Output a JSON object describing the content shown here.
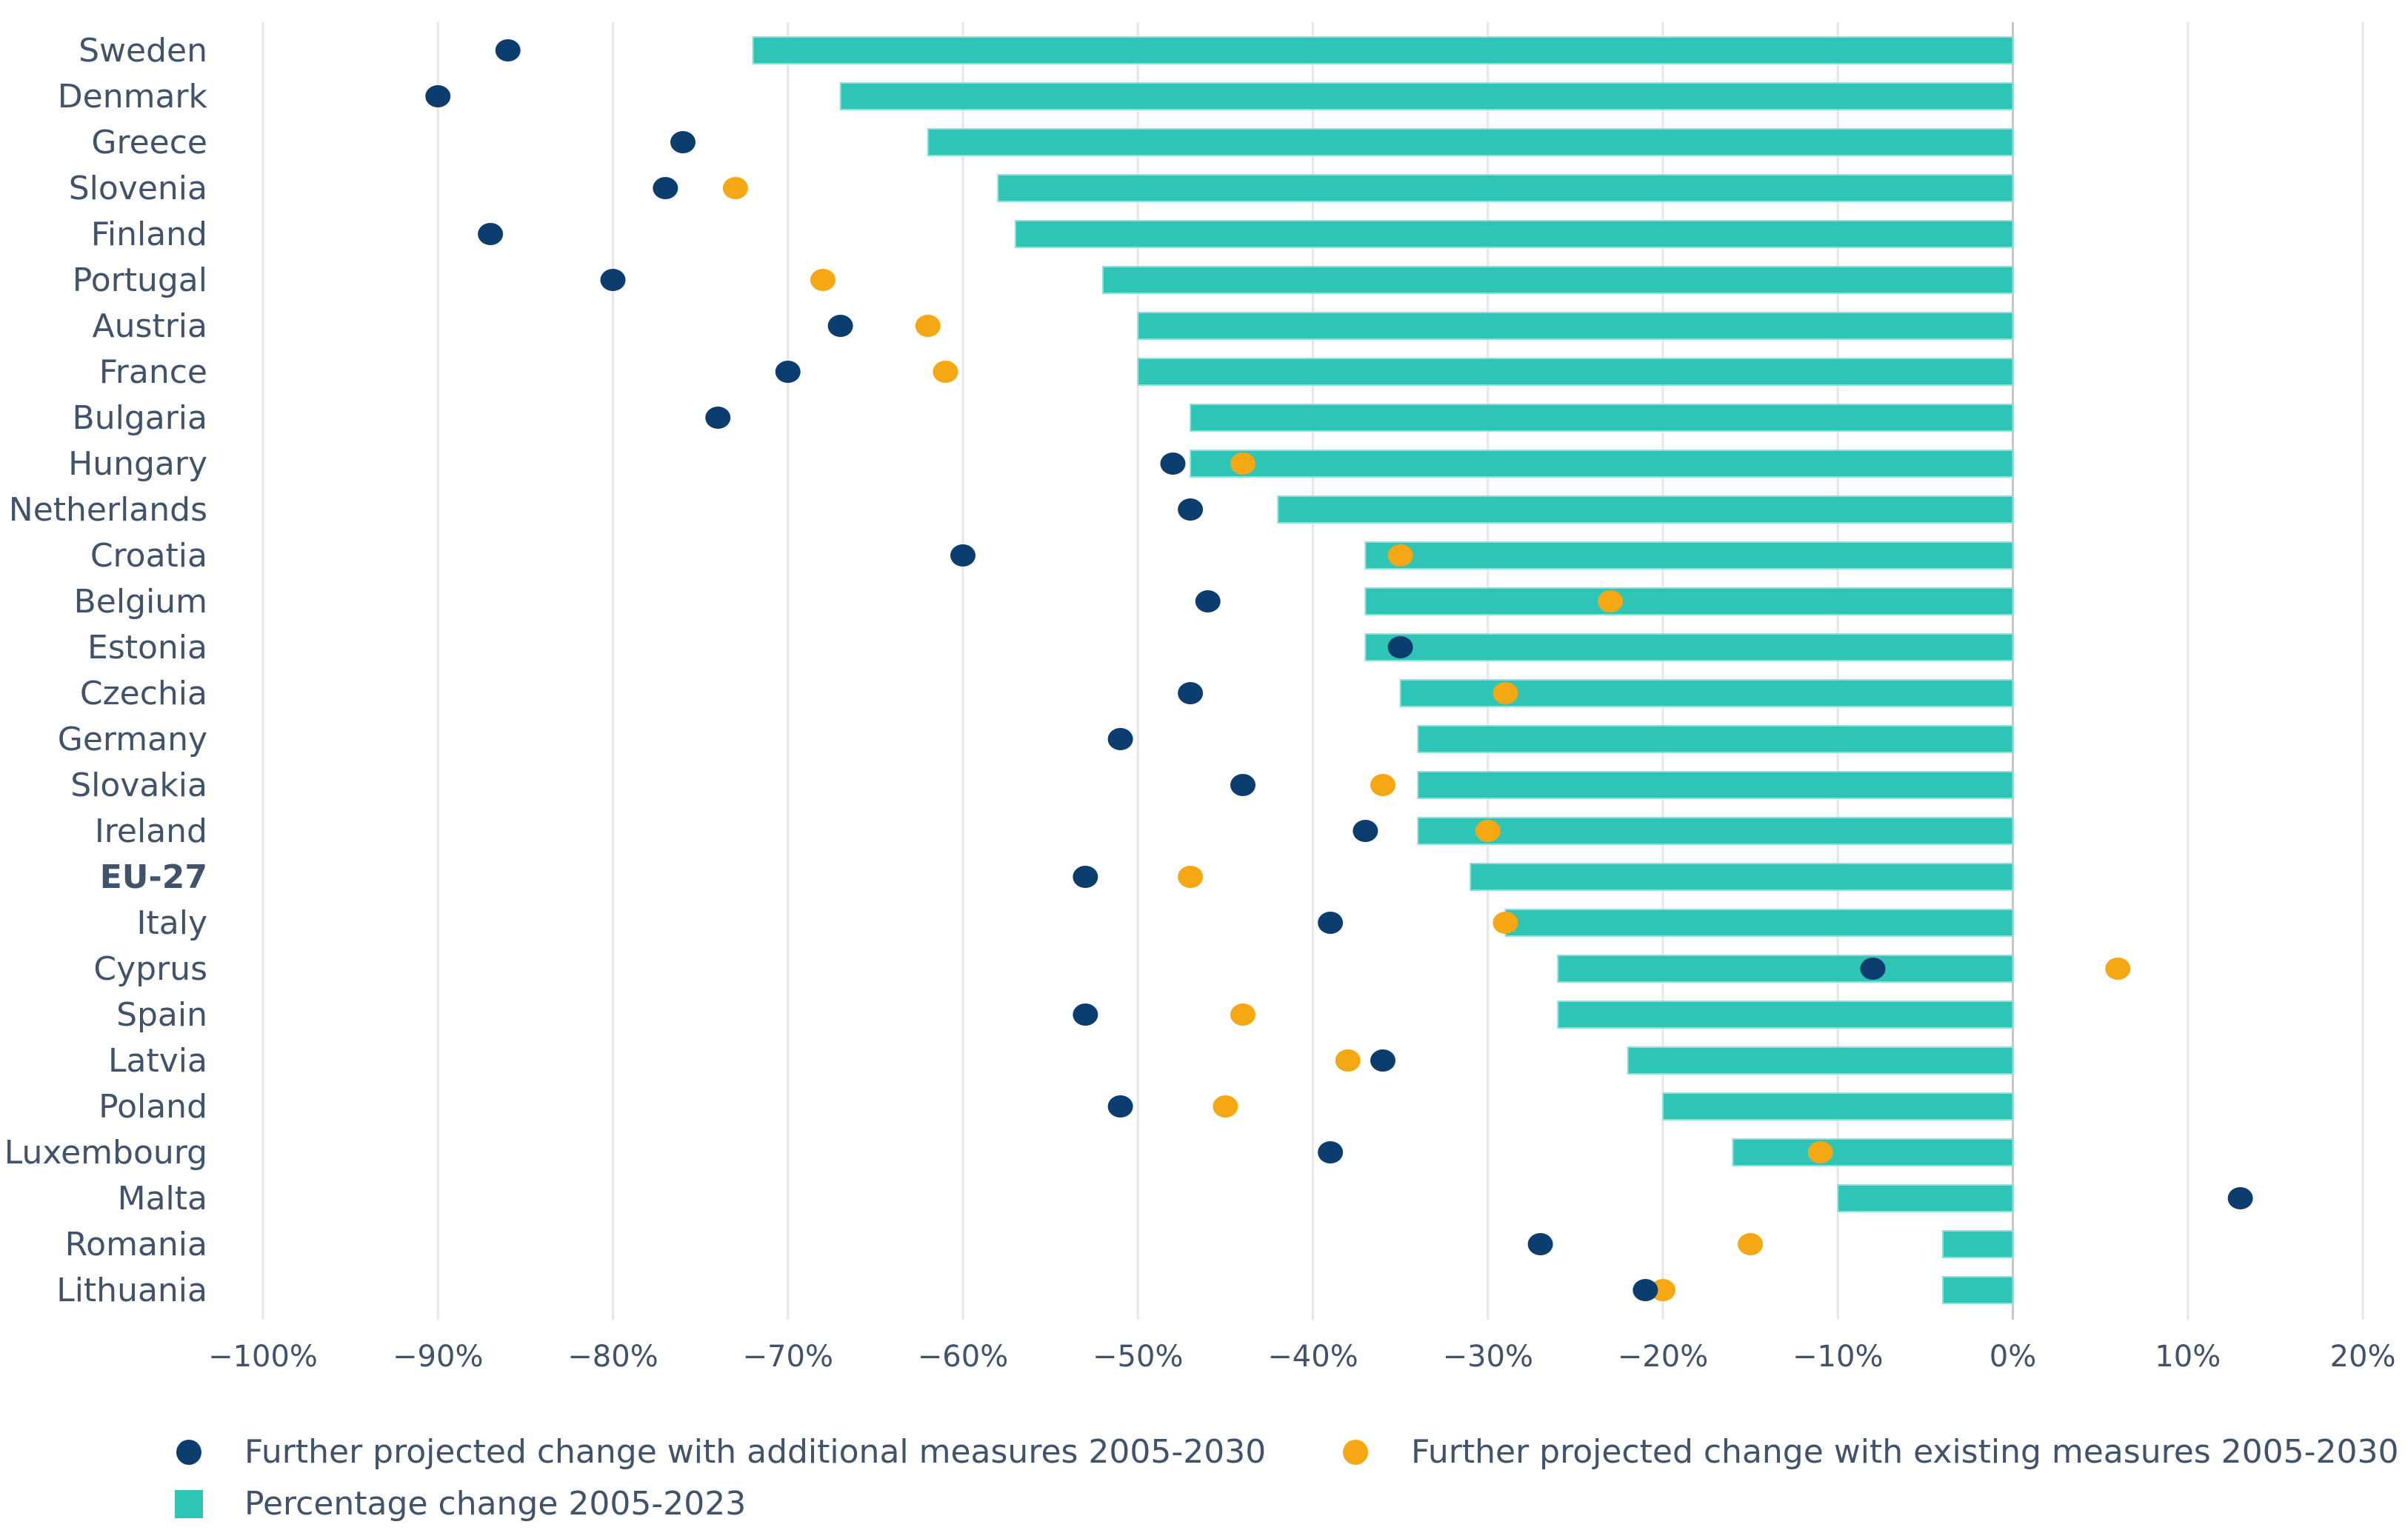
{
  "chart_data": {
    "type": "bar",
    "orientation": "horizontal",
    "title": "",
    "xlabel": "",
    "ylabel": "",
    "xlim": [
      -100,
      20
    ],
    "x_ticks": [
      -100,
      -90,
      -80,
      -70,
      -60,
      -50,
      -40,
      -30,
      -20,
      -10,
      0,
      10,
      20
    ],
    "x_tick_labels": [
      "−100%",
      "−90%",
      "−80%",
      "−70%",
      "−60%",
      "−50%",
      "−40%",
      "−30%",
      "−20%",
      "−10%",
      "0%",
      "10%",
      "20%"
    ],
    "grid": true,
    "legend_position": "bottom",
    "categories": [
      "Sweden",
      "Denmark",
      "Greece",
      "Slovenia",
      "Finland",
      "Portugal",
      "Austria",
      "France",
      "Bulgaria",
      "Hungary",
      "Netherlands",
      "Croatia",
      "Belgium",
      "Estonia",
      "Czechia",
      "Germany",
      "Slovakia",
      "Ireland",
      "EU-27",
      "Italy",
      "Cyprus",
      "Spain",
      "Latvia",
      "Poland",
      "Luxembourg",
      "Malta",
      "Romania",
      "Lithuania"
    ],
    "bold_categories": [
      "EU-27"
    ],
    "series": [
      {
        "name": "Percentage change 2005-2023",
        "kind": "bar",
        "color": "#2ec4b6",
        "values": [
          -72,
          -67,
          -62,
          -58,
          -57,
          -52,
          -50,
          -50,
          -47,
          -47,
          -42,
          -37,
          -37,
          -37,
          -35,
          -34,
          -34,
          -34,
          -31,
          -29,
          -26,
          -26,
          -22,
          -20,
          -16,
          -10,
          -4,
          -4
        ]
      },
      {
        "name": "Further projected change with additional measures 2005-2030",
        "kind": "dot",
        "color": "#0b3d6e",
        "values": [
          -86,
          -90,
          -76,
          -77,
          -87,
          -80,
          -67,
          -70,
          -74,
          -48,
          -47,
          -60,
          -46,
          -35,
          -47,
          -51,
          -44,
          -37,
          -53,
          -39,
          -8,
          -53,
          -36,
          -51,
          -39,
          13,
          -27,
          -21
        ]
      },
      {
        "name": "Further projected change with existing measures 2005-2030",
        "kind": "dot",
        "color": "#f5a814",
        "values": [
          null,
          null,
          null,
          -73,
          null,
          -68,
          -62,
          -61,
          null,
          -44,
          null,
          -35,
          -23,
          null,
          -29,
          null,
          -36,
          -30,
          -47,
          -29,
          6,
          -44,
          -38,
          -45,
          -11,
          null,
          -15,
          -20
        ]
      }
    ]
  },
  "legend": {
    "items": [
      {
        "label": "Further projected change with additional measures 2005-2030",
        "marker": "dot",
        "color": "#0b3d6e"
      },
      {
        "label": "Further projected change with existing measures 2005-2030",
        "marker": "dot",
        "color": "#f5a814"
      },
      {
        "label": "Percentage change 2005-2023",
        "marker": "square",
        "color": "#2ec4b6"
      }
    ]
  }
}
